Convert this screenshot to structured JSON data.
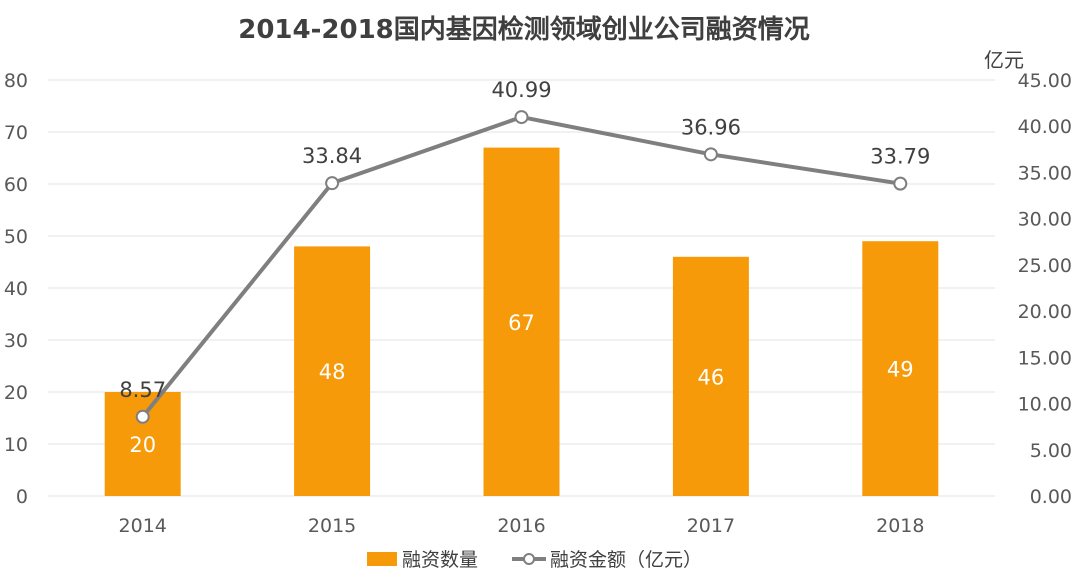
{
  "chart_data": {
    "type": "bar",
    "title": "2014-2018国内基因检测领域创业公司融资情况",
    "categories": [
      "2014",
      "2015",
      "2016",
      "2017",
      "2018"
    ],
    "series": [
      {
        "name": "融资数量",
        "type": "bar",
        "axis": "left",
        "color": "#f79a0a",
        "values": [
          20,
          48,
          67,
          46,
          49
        ]
      },
      {
        "name": "融资金额（亿元）",
        "type": "line",
        "axis": "right",
        "color": "#7f7f7f",
        "values": [
          8.57,
          33.84,
          40.99,
          36.96,
          33.79
        ]
      }
    ],
    "y_left": {
      "min": 0,
      "max": 80,
      "ticks": [
        "0",
        "10",
        "20",
        "30",
        "40",
        "50",
        "60",
        "70",
        "80"
      ]
    },
    "y_right": {
      "min": 0,
      "max": 45,
      "unit": "亿元",
      "ticks": [
        "0.00",
        "5.00",
        "10.00",
        "15.00",
        "20.00",
        "25.00",
        "30.00",
        "35.00",
        "40.00",
        "45.00"
      ]
    },
    "bar_labels": [
      "20",
      "48",
      "67",
      "46",
      "49"
    ],
    "line_labels": [
      "8.57",
      "33.84",
      "40.99",
      "36.96",
      "33.79"
    ],
    "grid": true,
    "legend": {
      "position": "bottom"
    }
  }
}
